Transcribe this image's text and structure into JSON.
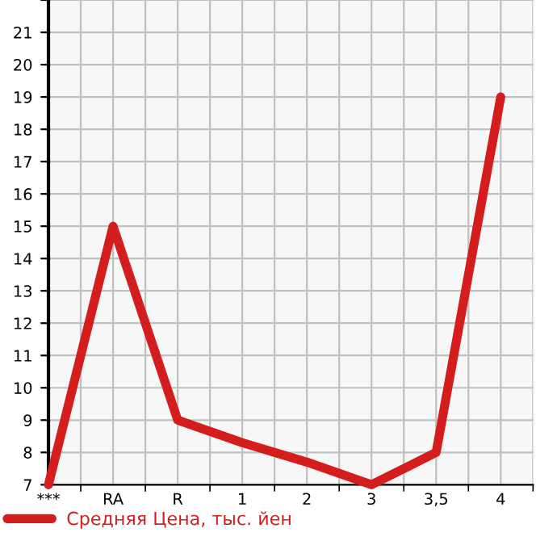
{
  "chart_data": {
    "type": "line",
    "categories": [
      "***",
      "RA",
      "R",
      "1",
      "2",
      "3",
      "3,5",
      "4"
    ],
    "series": [
      {
        "name": "Средняя Цена, тыс. йен",
        "color": "#d41e1e",
        "values": [
          7,
          15,
          9,
          8.3,
          7.7,
          7,
          8,
          19
        ]
      }
    ],
    "ylim": [
      7,
      22
    ],
    "yticks": [
      7,
      8,
      9,
      10,
      11,
      12,
      13,
      14,
      15,
      16,
      17,
      18,
      19,
      20,
      21,
      {
        "value": 22,
        "label": null
      }
    ],
    "grid": true,
    "legend": "bottom left",
    "marker": "none",
    "line_style": "solid"
  }
}
